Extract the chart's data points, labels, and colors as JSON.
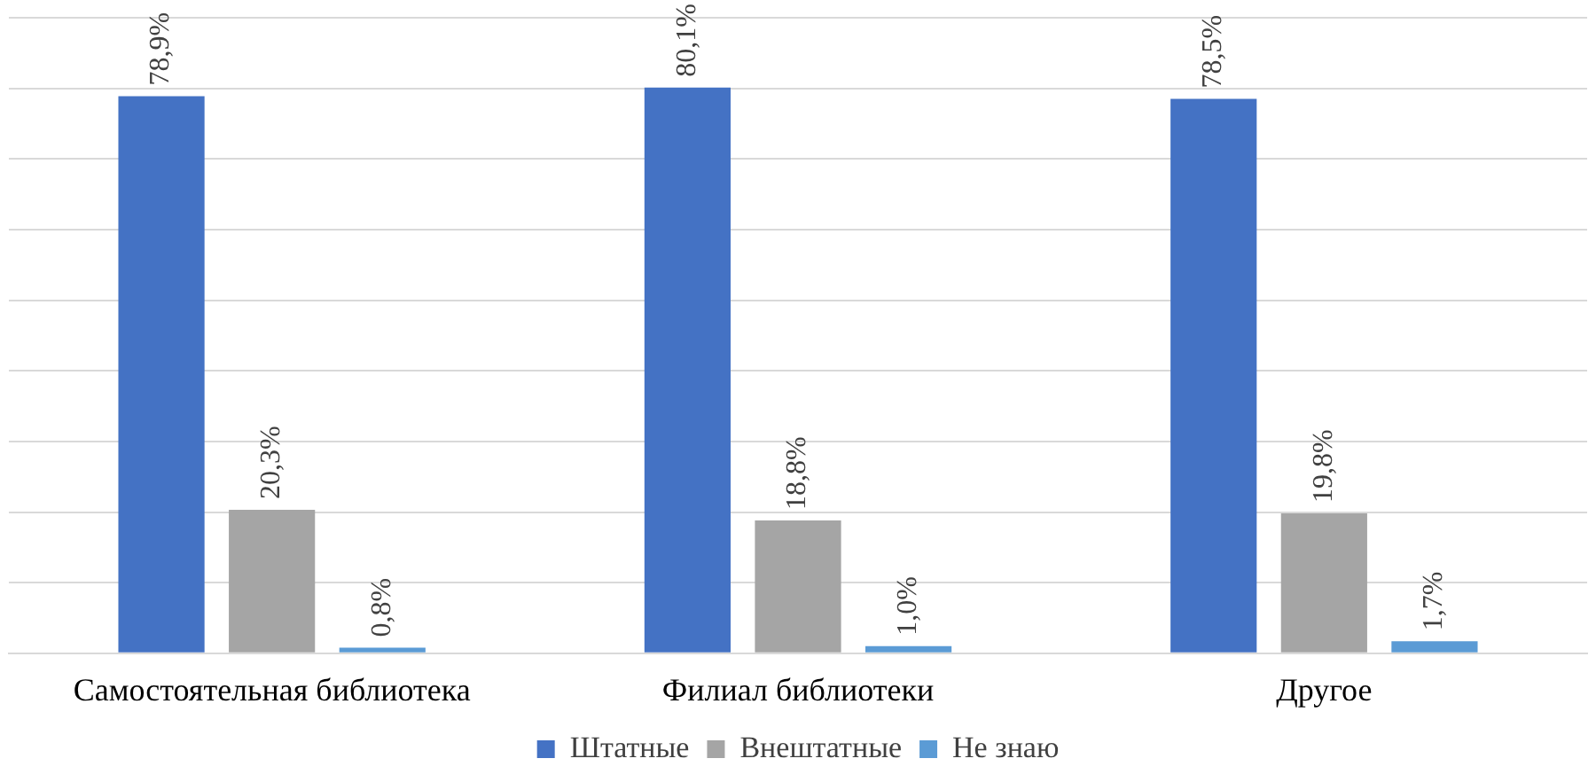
{
  "chart_data": {
    "type": "bar",
    "categories": [
      "Самостоятельная библиотека",
      "Филиал библиотеки",
      "Другое"
    ],
    "series": [
      {
        "name": "Штатные",
        "color": "#4472c4",
        "values": [
          78.9,
          80.1,
          78.5
        ],
        "value_labels": [
          "78,9%",
          "80,1%",
          "78,5%"
        ]
      },
      {
        "name": "Внештатные",
        "color": "#a5a5a5",
        "values": [
          20.3,
          18.8,
          19.8
        ],
        "value_labels": [
          "20,3%",
          "18,8%",
          "19,8%"
        ]
      },
      {
        "name": "Не знаю",
        "color": "#5b9bd5",
        "values": [
          0.8,
          1.0,
          1.7
        ],
        "value_labels": [
          "0,8%",
          "1,0%",
          "1,7%"
        ]
      }
    ],
    "ylim": [
      0,
      90
    ],
    "yticks": [
      0,
      10,
      20,
      30,
      40,
      50,
      60,
      70,
      80,
      90
    ],
    "tick_labels": "x",
    "grid": "y",
    "legend": "bottom"
  }
}
